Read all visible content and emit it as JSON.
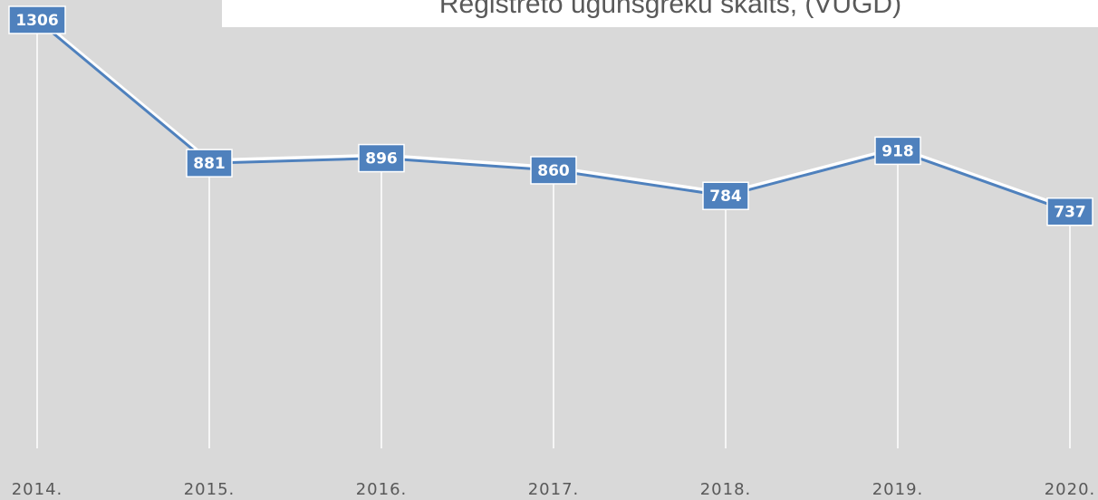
{
  "chart_data": {
    "type": "line",
    "title": "Reģistrēto ugunsgrēku skaits, (VUGD)",
    "categories": [
      "2014.",
      "2015.",
      "2016.",
      "2017.",
      "2018.",
      "2019.",
      "2020."
    ],
    "series": [
      {
        "name": "Reģistrēto ugunsgrēku skaits",
        "color": "#4f81bd",
        "values": [
          1306,
          881,
          896,
          860,
          784,
          918,
          737
        ]
      }
    ],
    "ylim": [
      0,
      1400
    ]
  }
}
